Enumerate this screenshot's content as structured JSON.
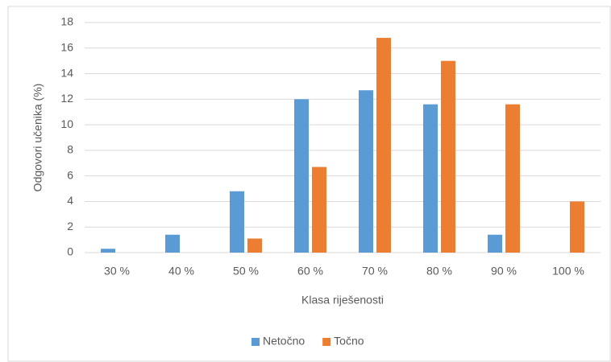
{
  "chart_data": {
    "type": "bar",
    "xlabel": "Klasa riješenosti",
    "ylabel": "Odgovori učenika (%)",
    "categories": [
      "30 %",
      "40 %",
      "50 %",
      "60 %",
      "70 %",
      "80 %",
      "90 %",
      "100 %"
    ],
    "series": [
      {
        "name": "Netočno",
        "color": "#5b9bd5",
        "values": [
          0.3,
          1.4,
          4.8,
          12.0,
          12.7,
          11.6,
          1.4,
          0
        ]
      },
      {
        "name": "Točno",
        "color": "#ed7d31",
        "values": [
          0,
          0,
          1.1,
          6.7,
          16.8,
          15.0,
          11.6,
          4.0
        ]
      }
    ],
    "ylim": [
      0,
      18
    ],
    "yticks": [
      0,
      2,
      4,
      6,
      8,
      10,
      12,
      14,
      16,
      18
    ],
    "grid": true,
    "legend": "bottom"
  }
}
